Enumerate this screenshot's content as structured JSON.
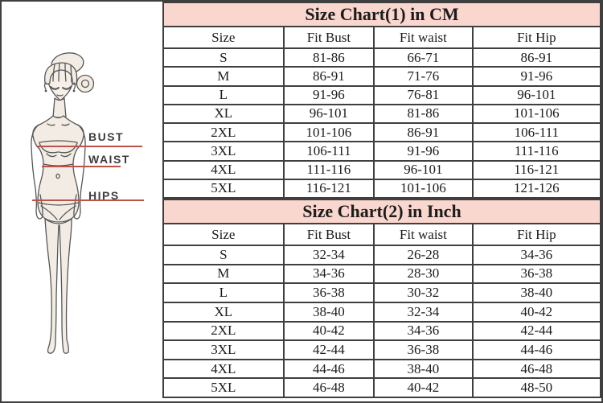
{
  "colors": {
    "header_pink": "#f9d6ce",
    "table_border": "#3f3f3f",
    "measure_line_red": "#bb5348"
  },
  "figure_panel": {
    "figure": "woman-body-measurement-sketch",
    "labels": [
      "BUST",
      "WAIST",
      "HIPS"
    ]
  },
  "tables": [
    {
      "title": "Size Chart(1) in CM",
      "columns": [
        "Size",
        "Fit Bust",
        "Fit waist",
        "Fit Hip"
      ],
      "rows": [
        [
          "S",
          "81-86",
          "66-71",
          "86-91"
        ],
        [
          "M",
          "86-91",
          "71-76",
          "91-96"
        ],
        [
          "L",
          "91-96",
          "76-81",
          "96-101"
        ],
        [
          "XL",
          "96-101",
          "81-86",
          "101-106"
        ],
        [
          "2XL",
          "101-106",
          "86-91",
          "106-111"
        ],
        [
          "3XL",
          "106-111",
          "91-96",
          "111-116"
        ],
        [
          "4XL",
          "111-116",
          "96-101",
          "116-121"
        ],
        [
          "5XL",
          "116-121",
          "101-106",
          "121-126"
        ]
      ]
    },
    {
      "title": "Size Chart(2) in Inch",
      "columns": [
        "Size",
        "Fit Bust",
        "Fit waist",
        "Fit Hip"
      ],
      "rows": [
        [
          "S",
          "32-34",
          "26-28",
          "34-36"
        ],
        [
          "M",
          "34-36",
          "28-30",
          "36-38"
        ],
        [
          "L",
          "36-38",
          "30-32",
          "38-40"
        ],
        [
          "XL",
          "38-40",
          "32-34",
          "40-42"
        ],
        [
          "2XL",
          "40-42",
          "34-36",
          "42-44"
        ],
        [
          "3XL",
          "42-44",
          "36-38",
          "44-46"
        ],
        [
          "4XL",
          "44-46",
          "38-40",
          "46-48"
        ],
        [
          "5XL",
          "46-48",
          "40-42",
          "48-50"
        ]
      ]
    }
  ]
}
